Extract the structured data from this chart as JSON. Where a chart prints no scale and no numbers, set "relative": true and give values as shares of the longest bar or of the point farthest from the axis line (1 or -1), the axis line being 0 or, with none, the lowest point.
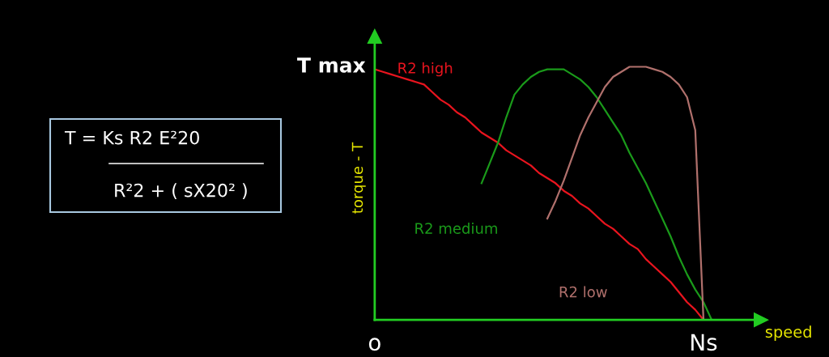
{
  "chart_data": {
    "type": "line",
    "relative": true,
    "xlabel": "speed",
    "ylabel": "torque - T",
    "legend": false,
    "marker": "none",
    "line_style": "solid",
    "categories": [
      "o",
      null,
      null,
      null,
      null,
      null,
      null,
      null,
      null,
      null,
      null,
      null,
      null,
      null,
      null,
      null,
      null,
      null,
      null,
      null,
      null,
      null,
      null,
      null,
      null,
      null,
      null,
      null,
      null,
      null,
      null,
      null,
      null,
      null,
      null,
      null,
      null,
      null,
      null,
      null,
      "Ns",
      null,
      null,
      null,
      null,
      null,
      null,
      null
    ],
    "annotations": [
      "T max",
      "T = Ks R2 E²20",
      "R²2 + ( sX20² )"
    ],
    "series": [
      {
        "name": "R2 high",
        "color": "#e8141e",
        "values": [
          0.99,
          0.98,
          0.97,
          0.96,
          0.95,
          0.94,
          0.93,
          0.9,
          0.87,
          0.85,
          0.82,
          0.8,
          0.77,
          0.74,
          0.72,
          0.7,
          0.67,
          0.65,
          0.63,
          0.61,
          0.58,
          0.56,
          0.54,
          0.51,
          0.49,
          0.46,
          0.44,
          0.41,
          0.38,
          0.36,
          0.33,
          0.3,
          0.28,
          0.24,
          0.21,
          0.18,
          0.15,
          0.11,
          0.07,
          0.04,
          0,
          null,
          null,
          null,
          null,
          null,
          null,
          null
        ]
      },
      {
        "name": "R2 medium",
        "color": "#1a9a1a",
        "values": [
          null,
          null,
          null,
          null,
          null,
          null,
          null,
          null,
          null,
          null,
          null,
          null,
          null,
          0.54,
          0.62,
          0.7,
          0.8,
          0.89,
          0.93,
          0.96,
          0.98,
          0.99,
          0.99,
          0.99,
          0.97,
          0.95,
          0.92,
          0.88,
          0.83,
          0.78,
          0.73,
          0.66,
          0.6,
          0.54,
          0.47,
          0.4,
          0.33,
          0.25,
          0.18,
          0.12,
          0.07,
          0,
          null,
          null,
          null,
          null,
          null,
          null
        ]
      },
      {
        "name": "R2 low",
        "color": "#b0706c",
        "values": [
          null,
          null,
          null,
          null,
          null,
          null,
          null,
          null,
          null,
          null,
          null,
          null,
          null,
          null,
          null,
          null,
          null,
          null,
          null,
          null,
          null,
          0.4,
          0.47,
          0.55,
          0.64,
          0.73,
          0.8,
          0.86,
          0.92,
          0.96,
          0.98,
          1.0,
          1.0,
          1.0,
          0.99,
          0.98,
          0.96,
          0.93,
          0.88,
          0.75,
          0,
          null,
          null,
          null,
          null,
          null,
          null,
          null
        ]
      }
    ]
  }
}
